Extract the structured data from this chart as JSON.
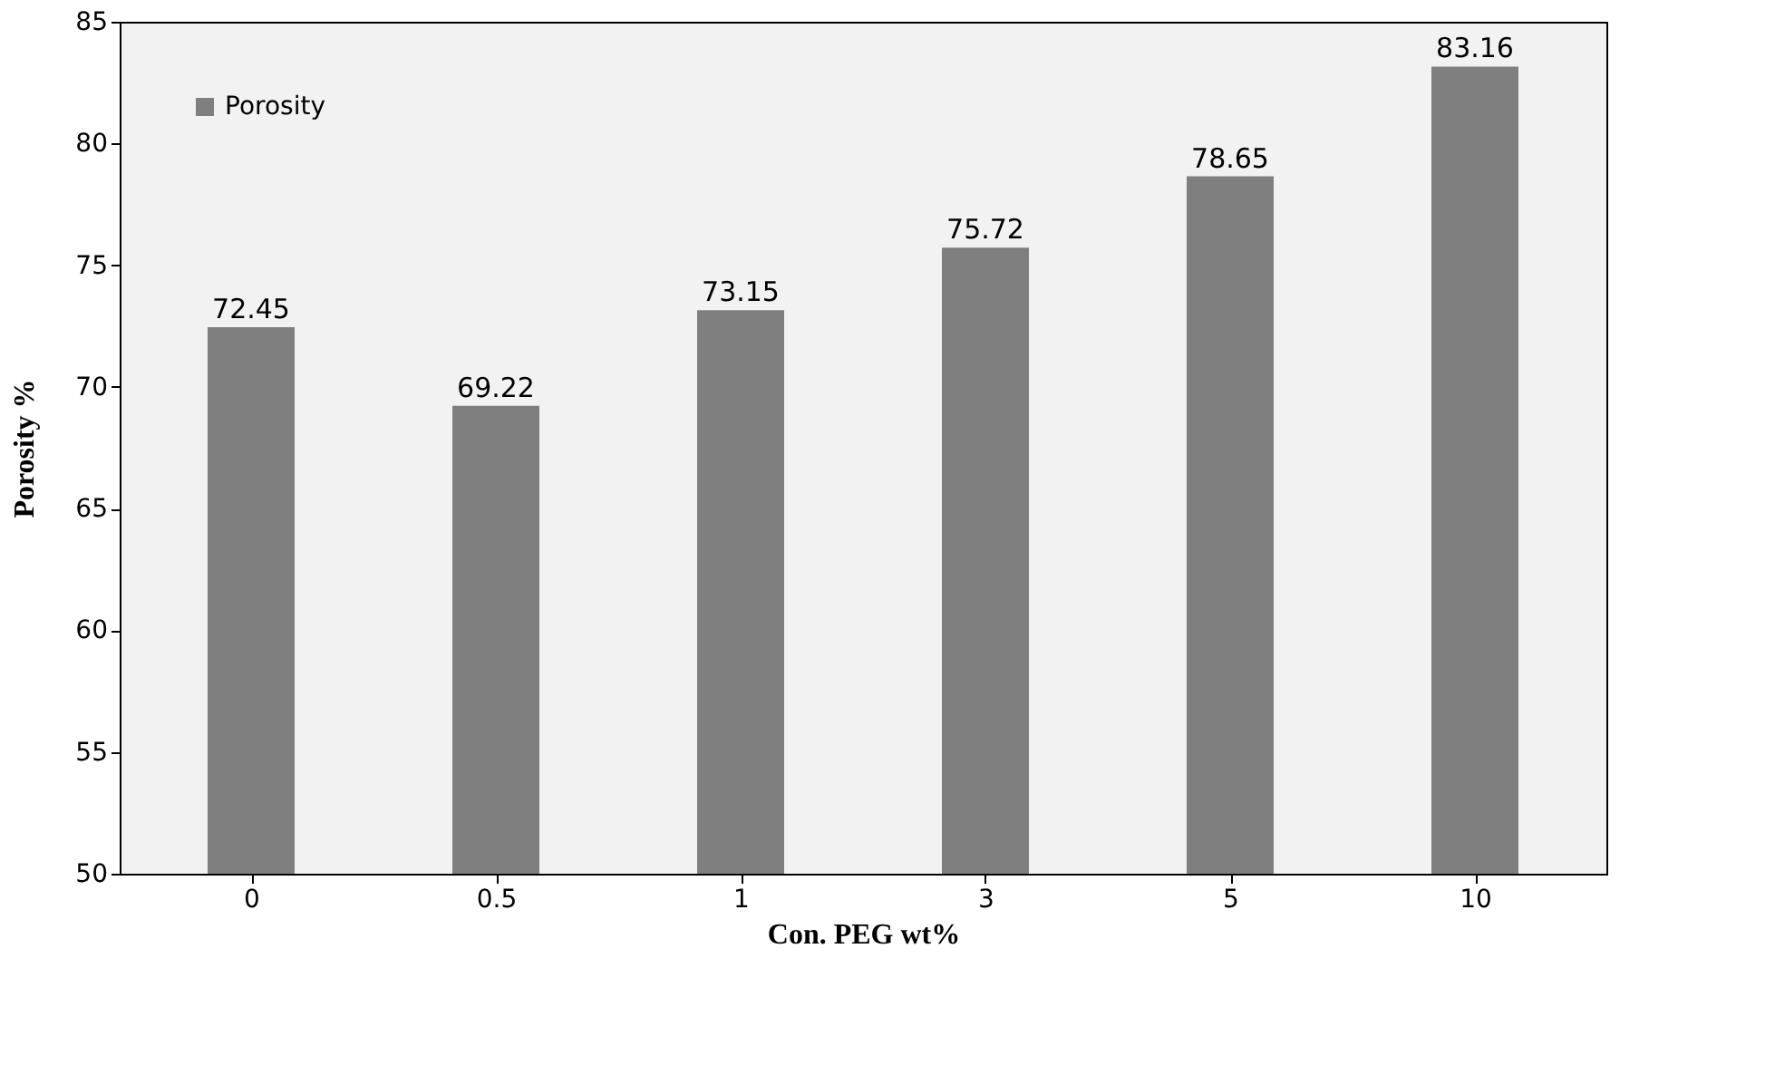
{
  "chart_data": {
    "type": "bar",
    "xlabel": "Con. PEG wt%",
    "ylabel": "Porosity %",
    "categories": [
      "0",
      "0.5",
      "1",
      "3",
      "5",
      "10"
    ],
    "series": [
      {
        "name": "Porosity",
        "color": "#7f7f7f",
        "values": [
          72.45,
          69.22,
          73.15,
          75.72,
          78.65,
          83.16
        ]
      }
    ],
    "ylim": [
      50,
      85
    ],
    "yticks": [
      50,
      55,
      60,
      65,
      70,
      75,
      80,
      85
    ],
    "grid": false,
    "legend": "top left",
    "data_labels": true
  }
}
